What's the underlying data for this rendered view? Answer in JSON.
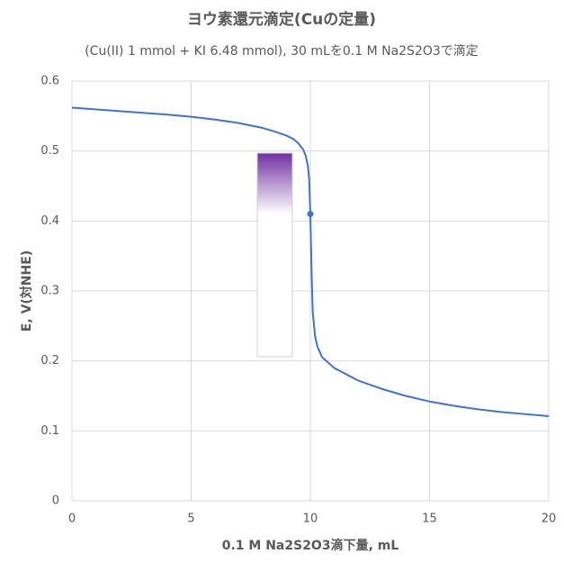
{
  "chart_data": {
    "type": "line",
    "title": "ヨウ素還元滴定(Cuの定量)",
    "subtitle": "(Cu(II) 1 mmol + KI 6.48 mmol), 30 mLを0.1 M Na2S2O3で滴定",
    "x_label": "0.1 M Na2S2O3滴下量, mL",
    "y_label": "E, V(対NHE)",
    "xlim": [
      0,
      20
    ],
    "ylim": [
      0,
      0.6
    ],
    "xticks": [
      0,
      5,
      10,
      15,
      20
    ],
    "yticks": [
      0,
      0.1,
      0.2,
      0.3,
      0.4,
      0.5,
      0.6
    ],
    "grid": true,
    "series": [
      {
        "color": "#4472c4",
        "marker": false,
        "x": [
          0,
          2,
          4,
          5,
          6,
          7,
          8,
          8.5,
          9,
          9.3,
          9.5,
          9.7,
          9.8,
          9.9,
          9.95,
          10,
          10.05,
          10.1,
          10.2,
          10.3,
          10.5,
          11,
          12,
          13,
          14,
          15,
          16,
          17,
          18,
          19,
          20
        ],
        "values": [
          0.562,
          0.557,
          0.552,
          0.549,
          0.545,
          0.54,
          0.533,
          0.528,
          0.522,
          0.517,
          0.511,
          0.502,
          0.494,
          0.478,
          0.46,
          0.41,
          0.33,
          0.27,
          0.235,
          0.22,
          0.205,
          0.19,
          0.172,
          0.16,
          0.15,
          0.142,
          0.136,
          0.131,
          0.127,
          0.124,
          0.121
        ]
      },
      {
        "color": "#4472c4",
        "marker": true,
        "x": [
          10
        ],
        "values": [
          0.41
        ]
      }
    ]
  }
}
